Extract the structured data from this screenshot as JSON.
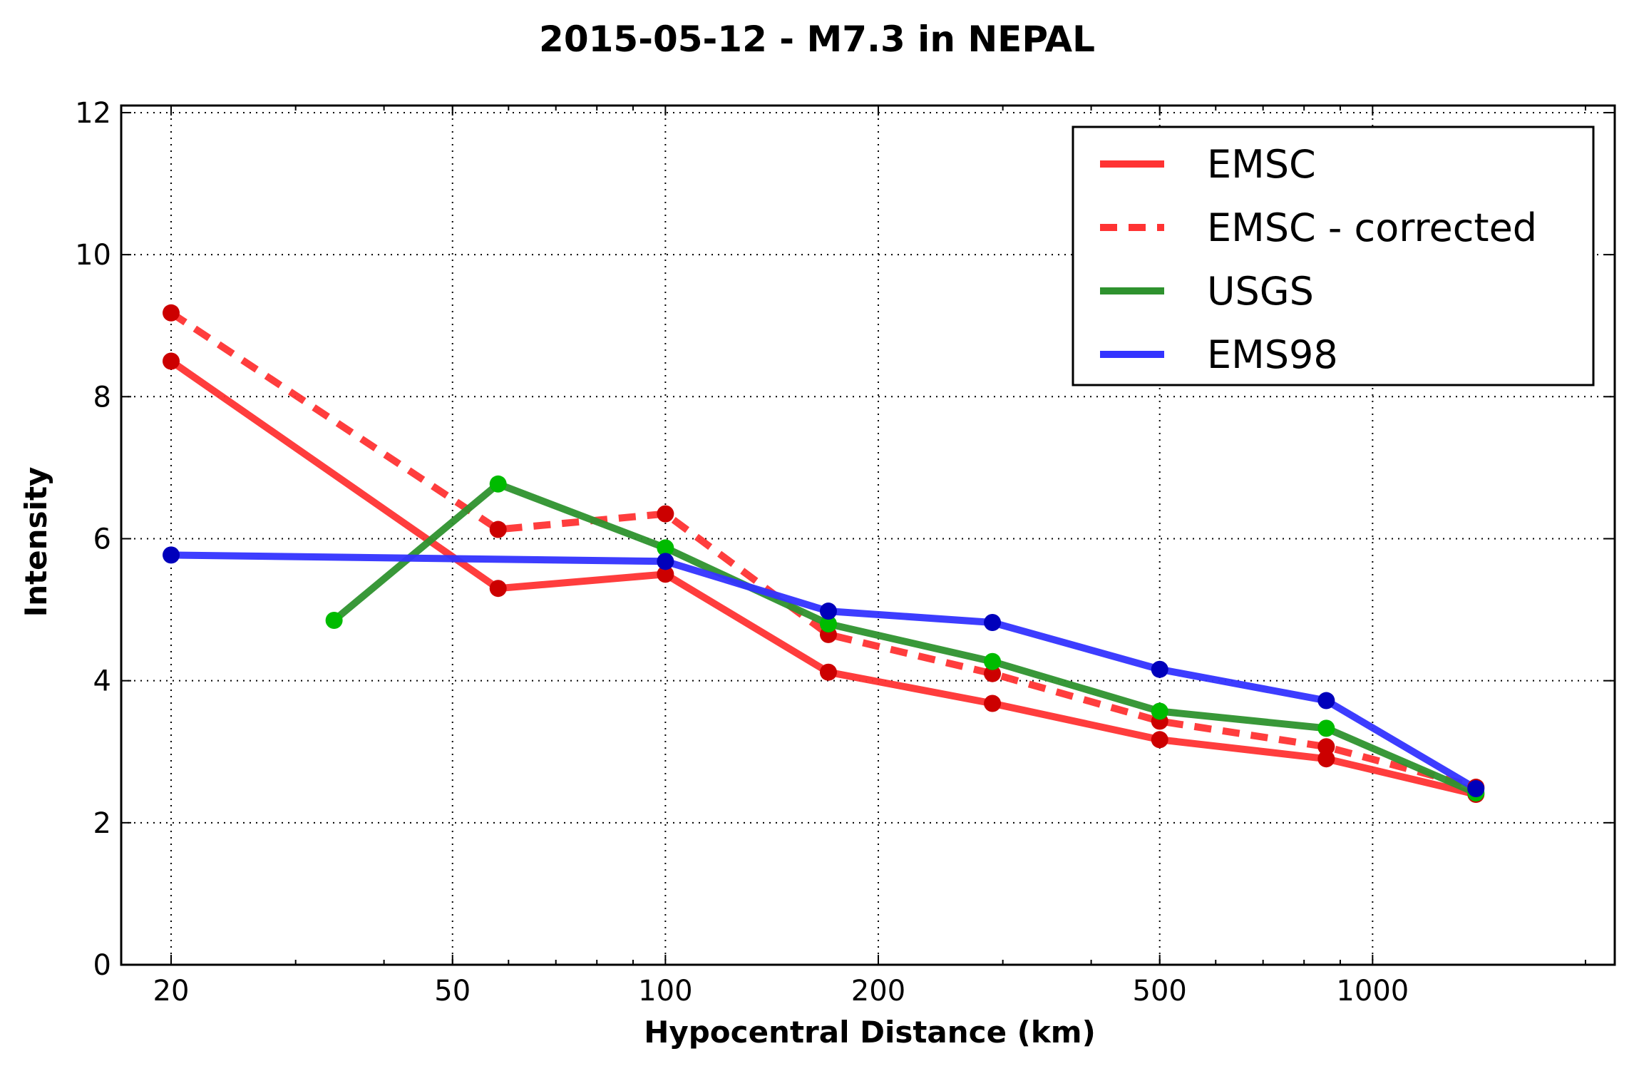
{
  "chart_data": {
    "type": "line",
    "title": "2015-05-12 - M7.3 in NEPAL",
    "xlabel": "Hypocentral Distance (km)",
    "ylabel": "Intensity",
    "x_scale": "log",
    "xlim": [
      17,
      2200
    ],
    "ylim": [
      0,
      12.1
    ],
    "x_ticks": [
      20,
      50,
      100,
      200,
      500,
      1000
    ],
    "x_tick_labels": [
      "20",
      "50",
      "100",
      "200",
      "500",
      "1000"
    ],
    "y_ticks": [
      0,
      2,
      4,
      6,
      8,
      10,
      12
    ],
    "y_tick_labels": [
      "0",
      "2",
      "4",
      "6",
      "8",
      "10",
      "12"
    ],
    "grid": true,
    "legend_position": "top-right",
    "series": [
      {
        "name": "EMSC",
        "style": "solid",
        "color": "#ff3333",
        "marker_color": "#cc0000",
        "points": [
          [
            20,
            8.5
          ],
          [
            58,
            5.3
          ],
          [
            100,
            5.5
          ],
          [
            170,
            4.12
          ],
          [
            290,
            3.68
          ],
          [
            500,
            3.17
          ],
          [
            860,
            2.9
          ],
          [
            1400,
            2.4
          ]
        ]
      },
      {
        "name": "EMSC - corrected",
        "style": "dashed",
        "color": "#ff3333",
        "marker_color": "#cc0000",
        "points": [
          [
            20,
            9.18
          ],
          [
            58,
            6.13
          ],
          [
            100,
            6.35
          ],
          [
            170,
            4.65
          ],
          [
            290,
            4.1
          ],
          [
            500,
            3.43
          ],
          [
            860,
            3.07
          ],
          [
            1400,
            2.5
          ]
        ]
      },
      {
        "name": "USGS",
        "style": "solid",
        "color": "#2e922e",
        "marker_color": "#00bb00",
        "points": [
          [
            34,
            4.85
          ],
          [
            58,
            6.77
          ],
          [
            100,
            5.87
          ],
          [
            170,
            4.8
          ],
          [
            290,
            4.27
          ],
          [
            500,
            3.57
          ],
          [
            860,
            3.33
          ],
          [
            1400,
            2.42
          ]
        ]
      },
      {
        "name": "EMS98",
        "style": "solid",
        "color": "#3333ff",
        "marker_color": "#0000bb",
        "points": [
          [
            20,
            5.77
          ],
          [
            100,
            5.68
          ],
          [
            170,
            4.98
          ],
          [
            290,
            4.82
          ],
          [
            500,
            4.16
          ],
          [
            860,
            3.72
          ],
          [
            1400,
            2.48
          ]
        ]
      }
    ]
  }
}
